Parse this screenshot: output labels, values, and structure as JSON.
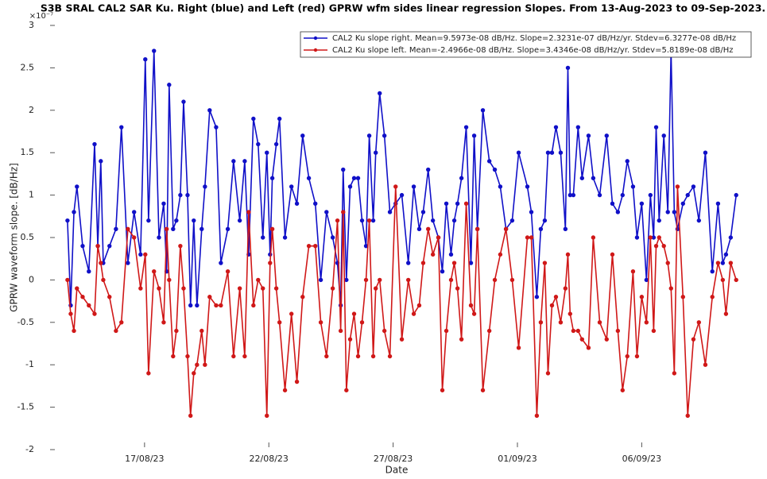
{
  "chart_data": {
    "type": "line",
    "title": "S3B SRAL CAL2 SAR Ku. Right (blue) and Left (red) GPRW wfm sides linear regression Slopes. From 13-Aug-2023 to 09-Sep-2023.",
    "x_label": "Date",
    "y_label": "GPRW waveform slope. [dB/Hz]",
    "y_multiplier": "×10⁻⁷",
    "xlim": [
      13.2,
      41.4
    ],
    "ylim": [
      -2,
      3
    ],
    "xticks": [
      {
        "value": 17,
        "label": "17/08/23"
      },
      {
        "value": 22,
        "label": "22/08/23"
      },
      {
        "value": 27,
        "label": "27/08/23"
      },
      {
        "value": 32,
        "label": "01/09/23"
      },
      {
        "value": 37,
        "label": "06/09/23"
      }
    ],
    "yticks": [
      -2,
      -1.5,
      -1,
      -0.5,
      0,
      0.5,
      1,
      1.5,
      2,
      2.5,
      3
    ],
    "legend_position": "upper right",
    "x": [
      13.9,
      14.03,
      14.16,
      14.28,
      14.51,
      14.76,
      14.99,
      15.12,
      15.24,
      15.34,
      15.59,
      15.85,
      16.07,
      16.33,
      16.58,
      16.84,
      17.03,
      17.16,
      17.38,
      17.58,
      17.77,
      17.89,
      17.99,
      18.15,
      18.28,
      18.44,
      18.57,
      18.73,
      18.85,
      18.98,
      19.11,
      19.3,
      19.43,
      19.62,
      19.88,
      20.07,
      20.35,
      20.58,
      20.83,
      21.03,
      21.19,
      21.38,
      21.57,
      21.76,
      21.92,
      22.05,
      22.14,
      22.3,
      22.43,
      22.65,
      22.91,
      23.13,
      23.36,
      23.61,
      23.87,
      24.09,
      24.32,
      24.57,
      24.76,
      24.89,
      24.99,
      25.12,
      25.27,
      25.43,
      25.59,
      25.75,
      25.91,
      26.04,
      26.2,
      26.3,
      26.46,
      26.65,
      26.87,
      27.1,
      27.35,
      27.61,
      27.83,
      28.05,
      28.21,
      28.41,
      28.6,
      28.82,
      28.98,
      29.14,
      29.33,
      29.46,
      29.59,
      29.75,
      29.94,
      30.13,
      30.26,
      30.39,
      30.61,
      30.87,
      31.09,
      31.31,
      31.54,
      31.79,
      32.05,
      32.4,
      32.56,
      32.78,
      32.94,
      33.1,
      33.23,
      33.39,
      33.55,
      33.74,
      33.93,
      34.03,
      34.12,
      34.25,
      34.44,
      34.6,
      34.86,
      35.05,
      35.31,
      35.59,
      35.82,
      36.04,
      36.23,
      36.42,
      36.65,
      36.81,
      37.0,
      37.19,
      37.35,
      37.48,
      37.58,
      37.7,
      37.89,
      38.05,
      38.18,
      38.31,
      38.44,
      38.66,
      38.85,
      39.08,
      39.3,
      39.56,
      39.84,
      40.07,
      40.26,
      40.39,
      40.58,
      40.8
    ],
    "series": [
      {
        "name": "CAL2 Ku slope right. Mean=9.5973e-08 dB/Hz. Slope=2.3231e-07 dB/Hz/yr. Stdev=6.3277e-08 dB/Hz",
        "color": "#1010c8",
        "values": [
          0.7,
          -0.3,
          0.8,
          1.1,
          0.4,
          0.1,
          1.6,
          0.4,
          1.4,
          0.2,
          0.4,
          0.6,
          1.8,
          0.2,
          0.8,
          0.3,
          2.6,
          0.7,
          2.7,
          0.5,
          0.9,
          0.1,
          2.3,
          0.6,
          0.7,
          1.0,
          2.1,
          1.0,
          -0.3,
          0.7,
          -0.3,
          0.6,
          1.1,
          2.0,
          1.8,
          0.2,
          0.6,
          1.4,
          0.7,
          1.4,
          0.3,
          1.9,
          1.6,
          0.5,
          1.5,
          0.3,
          1.2,
          1.6,
          1.9,
          0.5,
          1.1,
          0.9,
          1.7,
          1.2,
          0.9,
          0.0,
          0.8,
          0.5,
          0.2,
          -0.3,
          1.3,
          0.0,
          1.1,
          1.2,
          1.2,
          0.7,
          0.4,
          1.7,
          0.7,
          1.5,
          2.2,
          1.7,
          0.8,
          0.9,
          1.0,
          0.2,
          1.1,
          0.6,
          0.8,
          1.3,
          0.7,
          0.5,
          0.1,
          0.9,
          0.3,
          0.7,
          0.9,
          1.2,
          1.8,
          0.2,
          1.7,
          0.6,
          2.0,
          1.4,
          1.3,
          1.1,
          0.6,
          0.7,
          1.5,
          1.1,
          0.8,
          -0.2,
          0.6,
          0.7,
          1.5,
          1.5,
          1.8,
          1.5,
          0.6,
          2.5,
          1.0,
          1.0,
          1.8,
          1.2,
          1.7,
          1.2,
          1.0,
          1.7,
          0.9,
          0.8,
          1.0,
          1.4,
          1.1,
          0.5,
          0.9,
          0.0,
          1.0,
          0.5,
          1.8,
          0.7,
          1.7,
          0.8,
          2.7,
          0.8,
          0.6,
          0.9,
          1.0,
          1.1,
          0.7,
          1.5,
          0.1,
          0.9,
          0.2,
          0.3,
          0.5,
          1.0
        ]
      },
      {
        "name": "CAL2 Ku slope left. Mean=-2.4966e-08 dB/Hz. Slope=3.4346e-08 dB/Hz/yr. Stdev=5.8189e-08 dB/Hz",
        "color": "#d01818",
        "values": [
          0.0,
          -0.4,
          -0.6,
          -0.1,
          -0.2,
          -0.3,
          -0.4,
          0.4,
          0.2,
          0.0,
          -0.2,
          -0.6,
          -0.5,
          0.6,
          0.5,
          -0.1,
          0.3,
          -1.1,
          0.1,
          -0.1,
          -0.5,
          0.6,
          0.0,
          -0.9,
          -0.6,
          0.4,
          -0.1,
          -0.9,
          -1.6,
          -1.1,
          -1.0,
          -0.6,
          -1.0,
          -0.2,
          -0.3,
          -0.3,
          0.1,
          -0.9,
          -0.1,
          -0.9,
          0.8,
          -0.3,
          0.0,
          -0.1,
          -1.6,
          0.2,
          0.6,
          -0.1,
          -0.5,
          -1.3,
          -0.4,
          -1.2,
          -0.2,
          0.4,
          0.4,
          -0.5,
          -0.9,
          -0.1,
          0.7,
          -0.6,
          0.8,
          -1.3,
          -0.7,
          -0.4,
          -0.9,
          -0.5,
          0.0,
          0.7,
          -0.9,
          -0.1,
          0.0,
          -0.6,
          -0.9,
          1.1,
          -0.7,
          0.0,
          -0.4,
          -0.3,
          0.2,
          0.6,
          0.3,
          0.5,
          -1.3,
          -0.6,
          0.0,
          0.2,
          -0.1,
          -0.7,
          0.9,
          -0.3,
          -0.4,
          0.6,
          -1.3,
          -0.6,
          0.0,
          0.3,
          0.6,
          0.0,
          -0.8,
          0.5,
          0.5,
          -1.6,
          -0.5,
          0.2,
          -1.1,
          -0.3,
          -0.2,
          -0.5,
          -0.1,
          0.3,
          -0.4,
          -0.6,
          -0.6,
          -0.7,
          -0.8,
          0.5,
          -0.5,
          -0.7,
          0.3,
          -0.6,
          -1.3,
          -0.9,
          0.1,
          -0.9,
          -0.2,
          -0.5,
          0.5,
          -0.6,
          0.4,
          0.5,
          0.4,
          0.2,
          -0.1,
          -1.1,
          1.1,
          -0.2,
          -1.6,
          -0.7,
          -0.5,
          -1.0,
          -0.2,
          0.2,
          0.0,
          -0.4,
          0.2,
          0.0
        ]
      }
    ]
  }
}
